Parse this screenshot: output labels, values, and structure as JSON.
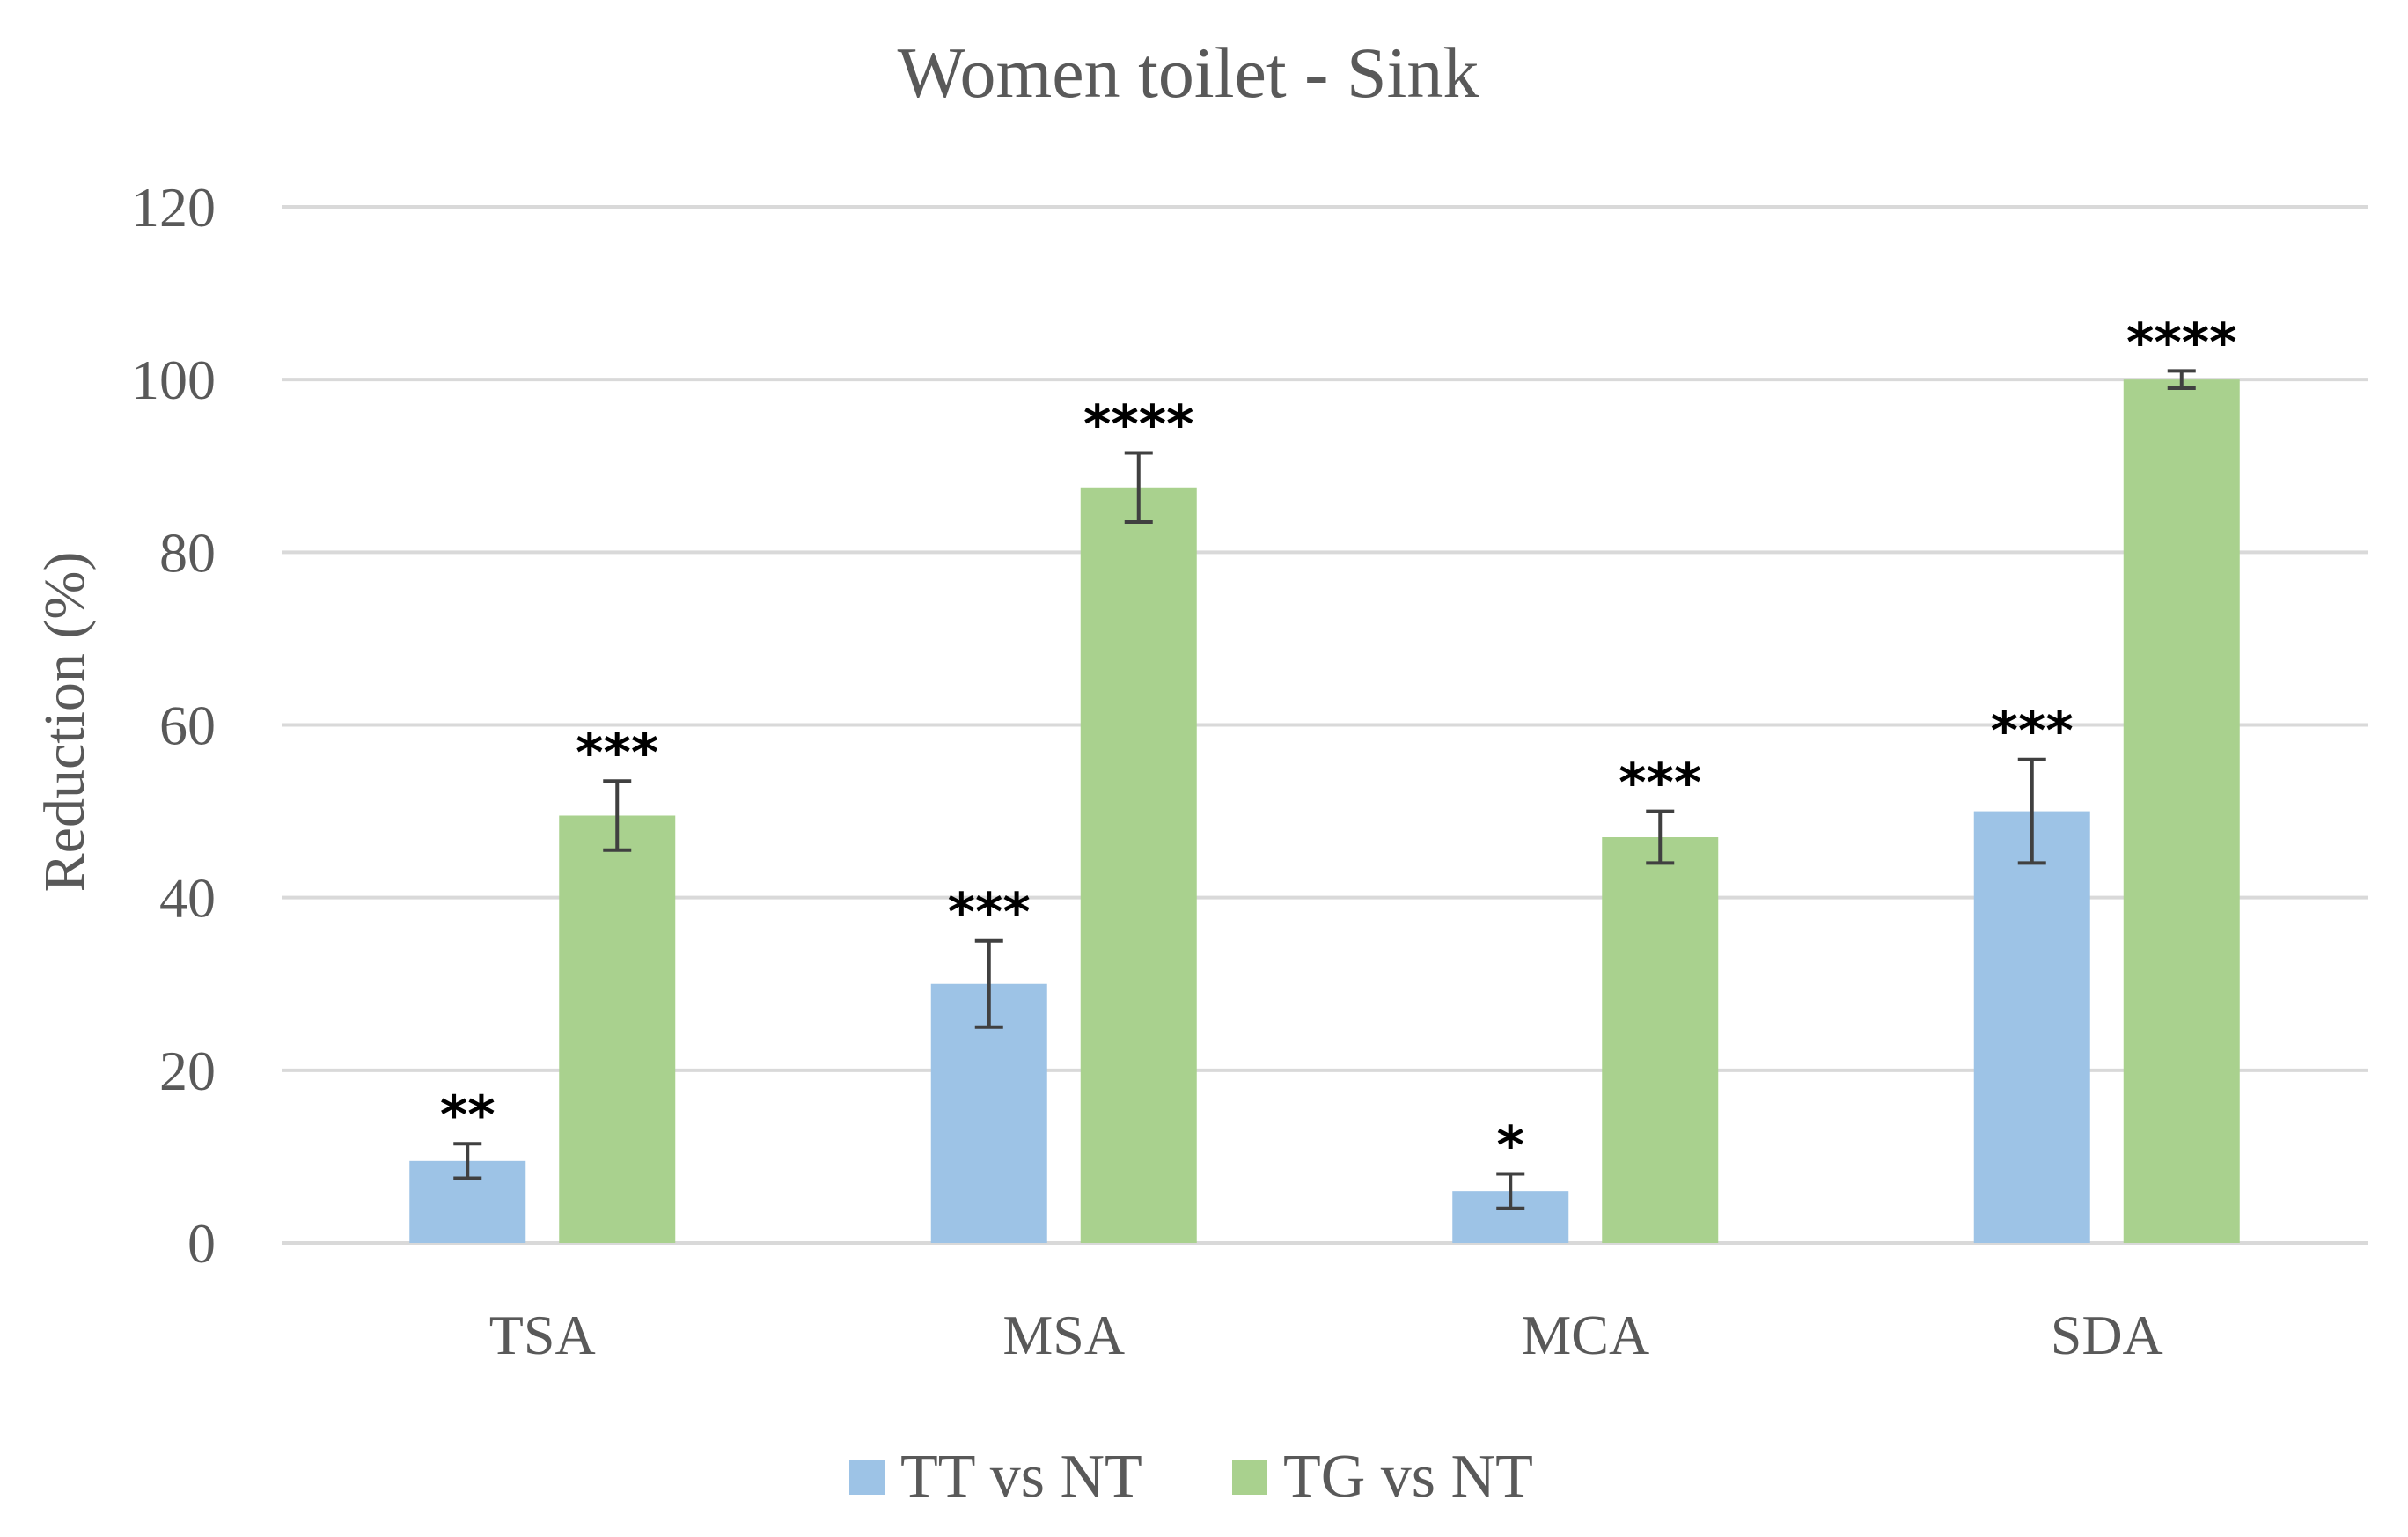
{
  "chart_data": {
    "type": "bar",
    "title": "Women toilet - Sink",
    "xlabel": "",
    "ylabel": "Reduction (%)",
    "ylim": [
      0,
      120
    ],
    "yticks": [
      0,
      20,
      40,
      60,
      80,
      100,
      120
    ],
    "categories": [
      "TSA",
      "MSA",
      "MCA",
      "SDA"
    ],
    "grid": true,
    "legend_position": "bottom",
    "series": [
      {
        "name": "TT vs NT",
        "color": "#9dc3e6",
        "values": [
          9.5,
          30,
          6,
          50
        ],
        "errors": [
          2,
          5,
          2,
          6
        ],
        "significance": [
          "**",
          "***",
          "*",
          "***"
        ]
      },
      {
        "name": "TG vs NT",
        "color": "#a9d18e",
        "values": [
          49.5,
          87.5,
          47,
          100
        ],
        "errors": [
          4,
          4,
          3,
          1
        ],
        "significance": [
          "***",
          "****",
          "***",
          "****"
        ]
      }
    ]
  }
}
